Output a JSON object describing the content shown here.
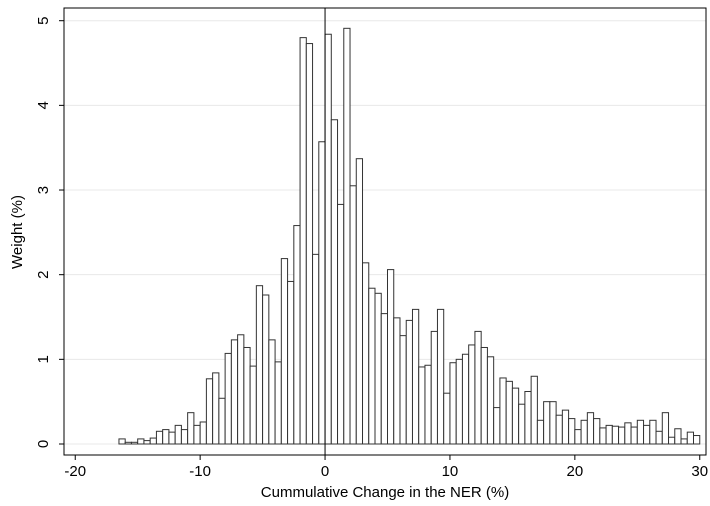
{
  "chart_data": {
    "type": "histogram",
    "xlabel": "Cummulative Change in the NER (%)",
    "ylabel": "Weight (%)",
    "bins": [
      -16.5,
      -16,
      -15.5,
      -15,
      -14.5,
      -14,
      -13.5,
      -13,
      -12.5,
      -12,
      -11.5,
      -11,
      -10.5,
      -10,
      -9.5,
      -9,
      -8.5,
      -8,
      -7.5,
      -7,
      -6.5,
      -6,
      -5.5,
      -5,
      -4.5,
      -4,
      -3.5,
      -3,
      -2.5,
      -2,
      -1.5,
      -1,
      -0.5,
      0,
      0.5,
      1,
      1.5,
      2,
      2.5,
      3,
      3.5,
      4,
      4.5,
      5,
      5.5,
      6,
      6.5,
      7,
      7.5,
      8,
      8.5,
      9,
      9.5,
      10,
      10.5,
      11,
      11.5,
      12,
      12.5,
      13,
      13.5,
      14,
      14.5,
      15,
      15.5,
      16,
      16.5,
      17,
      17.5,
      18,
      18.5,
      19,
      19.5,
      20,
      20.5,
      21,
      21.5,
      22,
      22.5,
      23,
      23.5,
      24,
      24.5,
      25,
      25.5,
      26,
      26.5,
      27,
      27.5,
      28,
      28.5,
      29,
      29.5,
      30
    ],
    "values": [
      0.06,
      0.02,
      0.02,
      0.06,
      0.04,
      0.07,
      0.15,
      0.17,
      0.14,
      0.22,
      0.17,
      0.37,
      0.22,
      0.26,
      0.77,
      0.84,
      0.54,
      1.07,
      1.23,
      1.29,
      1.14,
      0.92,
      1.87,
      1.76,
      1.23,
      0.97,
      2.19,
      1.92,
      2.58,
      4.8,
      4.73,
      2.24,
      3.57,
      4.84,
      3.83,
      2.83,
      4.91,
      3.05,
      3.37,
      2.14,
      1.84,
      1.78,
      1.54,
      2.06,
      1.49,
      1.28,
      1.46,
      1.59,
      0.91,
      0.93,
      1.33,
      1.59,
      0.6,
      0.96,
      1.0,
      1.06,
      1.17,
      1.33,
      1.14,
      1.03,
      0.43,
      0.78,
      0.74,
      0.66,
      0.47,
      0.62,
      0.8,
      0.28,
      0.5,
      0.5,
      0.34,
      0.4,
      0.3,
      0.17,
      0.28,
      0.37,
      0.3,
      0.19,
      0.22,
      0.21,
      0.2,
      0.25,
      0.2,
      0.28,
      0.22,
      0.28,
      0.15,
      0.37,
      0.08,
      0.18,
      0.06,
      0.14,
      0.1
    ],
    "color": "#ffffff",
    "edgecolor": "#333333",
    "xline": 0,
    "xlim": [
      -20.9,
      30.5
    ],
    "xticks": [
      -20,
      -10,
      0,
      10,
      20,
      30
    ],
    "ylim": [
      -0.13,
      5.15
    ],
    "yticks": [
      0,
      1,
      2,
      3,
      4,
      5
    ],
    "grid": true
  }
}
